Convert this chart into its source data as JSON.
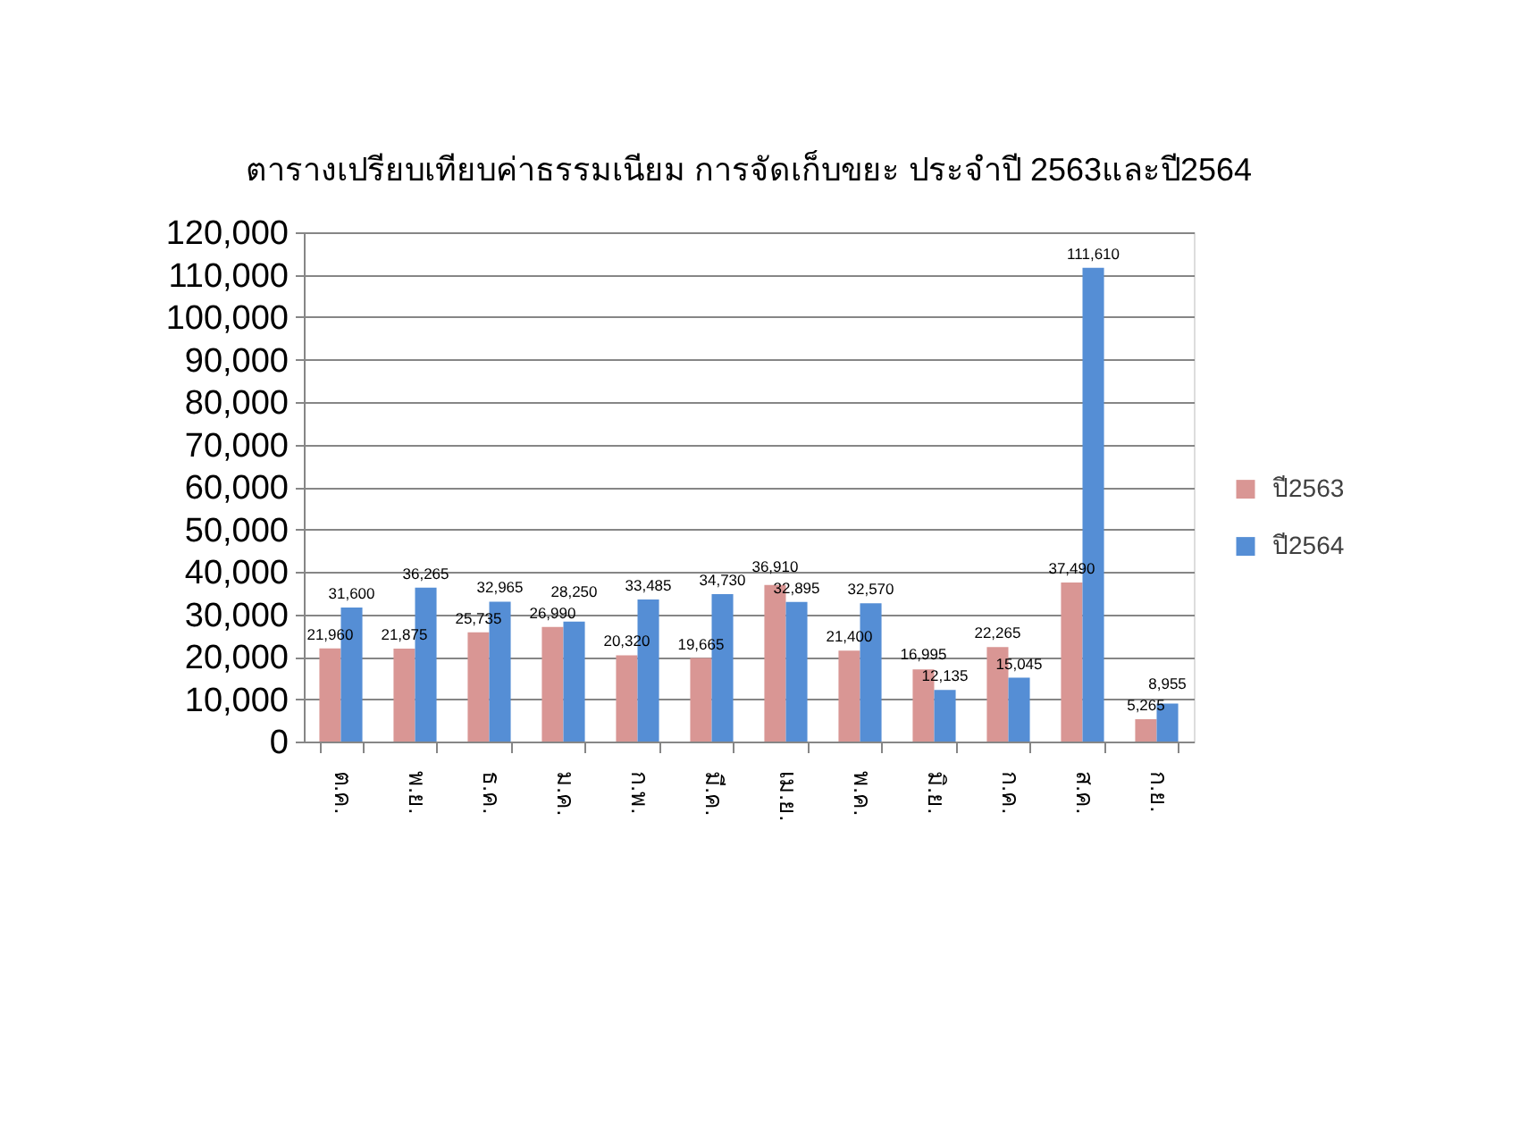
{
  "chart_data": {
    "type": "bar",
    "title": "ตารางเปรียบเทียบค่าธรรมเนียม การจัดเก็บขยะ ประจำปี 2563และปี2564",
    "categories": [
      "ต.ค.",
      "พ.ย.",
      "ธ.ค.",
      "ม.ค.",
      "ก.พ.",
      "มี.ค.",
      "เม.ย.",
      "พ.ค.",
      "มิ.ย.",
      "ก.ค.",
      "ส.ค.",
      "ก.ย."
    ],
    "series": [
      {
        "name": "ปี2563",
        "color": "#d99694",
        "values": [
          21960,
          21875,
          25735,
          26990,
          20320,
          19665,
          36910,
          21400,
          16995,
          22265,
          37490,
          5265
        ],
        "value_labels": [
          "21,960",
          "21,875",
          "25,735",
          "26,990",
          "20,320",
          "19,665",
          "36,910",
          "21,400",
          "16,995",
          "22,265",
          "37,490",
          "5,265"
        ]
      },
      {
        "name": "ปี2564",
        "color": "#558ed5",
        "values": [
          31600,
          36265,
          32965,
          28250,
          33485,
          34730,
          32895,
          32570,
          12135,
          15045,
          111610,
          8955
        ],
        "value_labels": [
          "31,600",
          "36,265",
          "32,965",
          "28,250",
          "33,485",
          "34,730",
          "32,895",
          "32,570",
          "12,135",
          "15,045",
          "111,610",
          "8,955"
        ]
      }
    ],
    "ylim": [
      0,
      120000
    ],
    "yticks": [
      0,
      {
        "value": 10000,
        "label": "10,000"
      },
      {
        "value": 20000,
        "label": "20,000"
      },
      {
        "value": 30000,
        "label": "30,000"
      },
      {
        "value": 40000,
        "label": "40,000"
      },
      {
        "value": 50000,
        "label": "50,000"
      },
      {
        "value": 60000,
        "label": "60,000"
      },
      {
        "value": 70000,
        "label": "70,000"
      },
      {
        "value": 80000,
        "label": "80,000"
      },
      {
        "value": 90000,
        "label": "90,000"
      },
      {
        "value": 100000,
        "label": "100,000"
      },
      {
        "value": 110000,
        "label": "110,000"
      },
      {
        "value": 120000,
        "label": "120,000"
      }
    ],
    "grid": "y",
    "legend": "right"
  }
}
